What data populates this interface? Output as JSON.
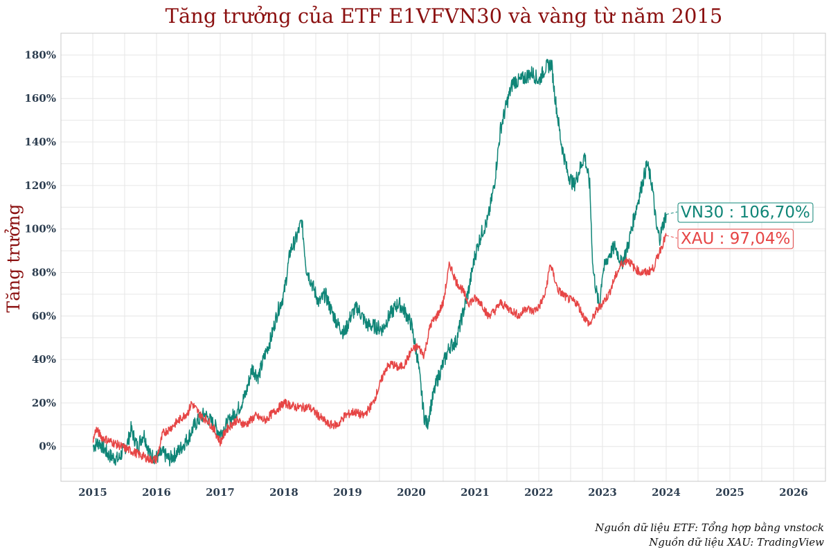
{
  "chart_data": {
    "type": "line",
    "title": "Tăng trưởng của ETF E1VFVN30 và vàng từ năm 2015",
    "xlabel": "",
    "ylabel": "Tăng trưởng",
    "xlim": [
      2014.5,
      2026.5
    ],
    "ylim": [
      -16,
      190
    ],
    "x_ticks": [
      2015,
      2016,
      2017,
      2018,
      2019,
      2020,
      2021,
      2022,
      2023,
      2024,
      2025,
      2026
    ],
    "x_tick_labels": [
      "2015",
      "2016",
      "2017",
      "2018",
      "2019",
      "2020",
      "2021",
      "2022",
      "2023",
      "2024",
      "2025",
      "2026"
    ],
    "y_ticks": [
      0,
      20,
      40,
      60,
      80,
      100,
      120,
      140,
      160,
      180
    ],
    "y_tick_labels": [
      "0%",
      "20%",
      "40%",
      "60%",
      "80%",
      "100%",
      "120%",
      "140%",
      "160%",
      "180%"
    ],
    "grid": true,
    "series": [
      {
        "name": "VN30",
        "color": "#0f8577",
        "end_label": "VN30 : 106,70%",
        "points": [
          [
            2015.0,
            0
          ],
          [
            2015.1,
            2
          ],
          [
            2015.25,
            -4
          ],
          [
            2015.4,
            -6
          ],
          [
            2015.55,
            2
          ],
          [
            2015.6,
            8
          ],
          [
            2015.7,
            0
          ],
          [
            2015.8,
            6
          ],
          [
            2015.9,
            -4
          ],
          [
            2016.0,
            -5
          ],
          [
            2016.1,
            -3
          ],
          [
            2016.2,
            -6
          ],
          [
            2016.35,
            -2
          ],
          [
            2016.5,
            4
          ],
          [
            2016.6,
            10
          ],
          [
            2016.75,
            15
          ],
          [
            2016.9,
            10
          ],
          [
            2017.0,
            6
          ],
          [
            2017.1,
            10
          ],
          [
            2017.2,
            14
          ],
          [
            2017.3,
            18
          ],
          [
            2017.4,
            24
          ],
          [
            2017.5,
            36
          ],
          [
            2017.6,
            32
          ],
          [
            2017.7,
            42
          ],
          [
            2017.8,
            50
          ],
          [
            2017.9,
            62
          ],
          [
            2018.0,
            70
          ],
          [
            2018.1,
            90
          ],
          [
            2018.2,
            96
          ],
          [
            2018.28,
            104
          ],
          [
            2018.35,
            82
          ],
          [
            2018.45,
            74
          ],
          [
            2018.55,
            66
          ],
          [
            2018.65,
            70
          ],
          [
            2018.75,
            62
          ],
          [
            2018.85,
            56
          ],
          [
            2018.95,
            52
          ],
          [
            2019.05,
            60
          ],
          [
            2019.15,
            64
          ],
          [
            2019.3,
            56
          ],
          [
            2019.45,
            55
          ],
          [
            2019.55,
            54
          ],
          [
            2019.65,
            60
          ],
          [
            2019.8,
            66
          ],
          [
            2019.9,
            62
          ],
          [
            2020.0,
            56
          ],
          [
            2020.1,
            40
          ],
          [
            2020.2,
            14
          ],
          [
            2020.25,
            10
          ],
          [
            2020.3,
            18
          ],
          [
            2020.4,
            30
          ],
          [
            2020.5,
            38
          ],
          [
            2020.6,
            46
          ],
          [
            2020.7,
            48
          ],
          [
            2020.8,
            60
          ],
          [
            2020.9,
            72
          ],
          [
            2021.0,
            88
          ],
          [
            2021.1,
            98
          ],
          [
            2021.2,
            104
          ],
          [
            2021.3,
            120
          ],
          [
            2021.4,
            146
          ],
          [
            2021.5,
            158
          ],
          [
            2021.6,
            168
          ],
          [
            2021.7,
            168
          ],
          [
            2021.8,
            170
          ],
          [
            2021.9,
            172
          ],
          [
            2022.0,
            168
          ],
          [
            2022.1,
            174
          ],
          [
            2022.2,
            176
          ],
          [
            2022.25,
            162
          ],
          [
            2022.35,
            140
          ],
          [
            2022.45,
            126
          ],
          [
            2022.55,
            120
          ],
          [
            2022.65,
            128
          ],
          [
            2022.72,
            134
          ],
          [
            2022.8,
            120
          ],
          [
            2022.85,
            82
          ],
          [
            2022.9,
            72
          ],
          [
            2022.95,
            64
          ],
          [
            2023.0,
            80
          ],
          [
            2023.1,
            88
          ],
          [
            2023.2,
            92
          ],
          [
            2023.3,
            84
          ],
          [
            2023.4,
            92
          ],
          [
            2023.5,
            106
          ],
          [
            2023.6,
            118
          ],
          [
            2023.7,
            130
          ],
          [
            2023.78,
            120
          ],
          [
            2023.85,
            100
          ],
          [
            2023.9,
            96
          ],
          [
            2023.95,
            102
          ],
          [
            2024.0,
            106.7
          ]
        ]
      },
      {
        "name": "XAU",
        "color": "#e64545",
        "end_label": "XAU : 97,04%",
        "points": [
          [
            2015.0,
            2
          ],
          [
            2015.05,
            8
          ],
          [
            2015.15,
            4
          ],
          [
            2015.3,
            2
          ],
          [
            2015.45,
            0
          ],
          [
            2015.6,
            -2
          ],
          [
            2015.75,
            -4
          ],
          [
            2015.9,
            -6
          ],
          [
            2016.0,
            -6
          ],
          [
            2016.1,
            6
          ],
          [
            2016.2,
            8
          ],
          [
            2016.35,
            12
          ],
          [
            2016.5,
            16
          ],
          [
            2016.55,
            20
          ],
          [
            2016.7,
            14
          ],
          [
            2016.8,
            12
          ],
          [
            2016.9,
            8
          ],
          [
            2017.0,
            2
          ],
          [
            2017.1,
            8
          ],
          [
            2017.25,
            12
          ],
          [
            2017.4,
            10
          ],
          [
            2017.55,
            14
          ],
          [
            2017.7,
            12
          ],
          [
            2017.85,
            16
          ],
          [
            2018.0,
            20
          ],
          [
            2018.2,
            18
          ],
          [
            2018.4,
            18
          ],
          [
            2018.55,
            14
          ],
          [
            2018.7,
            10
          ],
          [
            2018.85,
            10
          ],
          [
            2018.95,
            14
          ],
          [
            2019.1,
            16
          ],
          [
            2019.25,
            14
          ],
          [
            2019.4,
            20
          ],
          [
            2019.5,
            28
          ],
          [
            2019.6,
            36
          ],
          [
            2019.7,
            38
          ],
          [
            2019.8,
            36
          ],
          [
            2019.9,
            38
          ],
          [
            2020.0,
            44
          ],
          [
            2020.1,
            46
          ],
          [
            2020.2,
            42
          ],
          [
            2020.3,
            56
          ],
          [
            2020.4,
            60
          ],
          [
            2020.5,
            66
          ],
          [
            2020.6,
            84
          ],
          [
            2020.7,
            76
          ],
          [
            2020.8,
            72
          ],
          [
            2020.9,
            66
          ],
          [
            2021.0,
            68
          ],
          [
            2021.1,
            66
          ],
          [
            2021.2,
            60
          ],
          [
            2021.3,
            62
          ],
          [
            2021.4,
            66
          ],
          [
            2021.5,
            64
          ],
          [
            2021.6,
            62
          ],
          [
            2021.7,
            60
          ],
          [
            2021.8,
            64
          ],
          [
            2021.9,
            62
          ],
          [
            2022.0,
            64
          ],
          [
            2022.1,
            70
          ],
          [
            2022.18,
            84
          ],
          [
            2022.3,
            72
          ],
          [
            2022.45,
            68
          ],
          [
            2022.6,
            66
          ],
          [
            2022.7,
            60
          ],
          [
            2022.8,
            56
          ],
          [
            2022.9,
            62
          ],
          [
            2023.0,
            66
          ],
          [
            2023.1,
            70
          ],
          [
            2023.2,
            78
          ],
          [
            2023.3,
            84
          ],
          [
            2023.4,
            86
          ],
          [
            2023.5,
            82
          ],
          [
            2023.6,
            80
          ],
          [
            2023.7,
            80
          ],
          [
            2023.8,
            82
          ],
          [
            2023.9,
            90
          ],
          [
            2024.0,
            97.04
          ]
        ]
      }
    ]
  },
  "sources": {
    "line1": "Nguồn dữ liệu ETF: Tổng hợp bằng vnstock",
    "line2": "Nguồn dữ liệu XAU: TradingView"
  }
}
